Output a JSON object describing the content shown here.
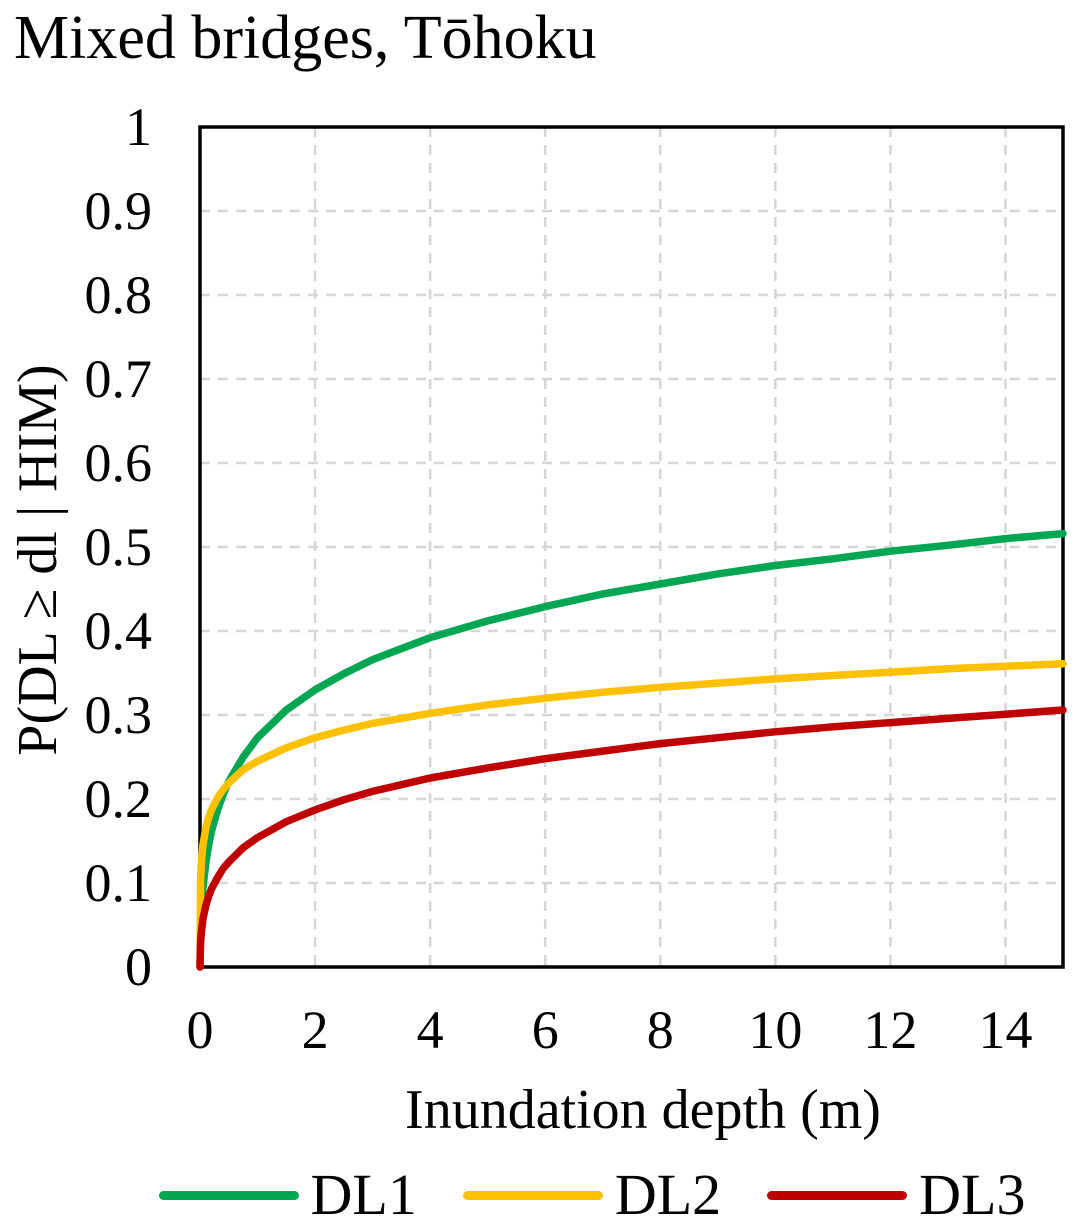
{
  "chart_data": {
    "type": "line",
    "title": "Mixed bridges, Tōhoku",
    "xlabel": "Inundation depth (m)",
    "ylabel": "P(DL ≥ dl | HIM)",
    "xlim": [
      0,
      15
    ],
    "ylim": [
      0,
      1
    ],
    "x_ticks": [
      0,
      2,
      4,
      6,
      8,
      10,
      12,
      14
    ],
    "y_ticks": [
      0,
      0.1,
      0.2,
      0.3,
      0.4,
      0.5,
      0.6,
      0.7,
      0.8,
      0.9,
      1
    ],
    "grid": "dashed",
    "legend_position": "bottom",
    "series": [
      {
        "name": "DL1",
        "color": "#00A651",
        "points": [
          [
            0,
            0
          ],
          [
            0.01,
            0.044
          ],
          [
            0.02,
            0.062
          ],
          [
            0.05,
            0.094
          ],
          [
            0.1,
            0.124
          ],
          [
            0.15,
            0.145
          ],
          [
            0.2,
            0.162
          ],
          [
            0.3,
            0.186
          ],
          [
            0.4,
            0.205
          ],
          [
            0.5,
            0.221
          ],
          [
            0.75,
            0.25
          ],
          [
            1,
            0.273
          ],
          [
            1.5,
            0.306
          ],
          [
            2,
            0.33
          ],
          [
            2.5,
            0.349
          ],
          [
            3,
            0.366
          ],
          [
            4,
            0.392
          ],
          [
            5,
            0.412
          ],
          [
            6,
            0.429
          ],
          [
            7,
            0.444
          ],
          [
            8,
            0.456
          ],
          [
            9,
            0.468
          ],
          [
            10,
            0.478
          ],
          [
            11,
            0.486
          ],
          [
            12,
            0.495
          ],
          [
            13,
            0.502
          ],
          [
            14,
            0.51
          ],
          [
            15,
            0.516
          ]
        ]
      },
      {
        "name": "DL2",
        "color": "#FFC000",
        "points": [
          [
            0,
            0
          ],
          [
            0.01,
            0.104
          ],
          [
            0.02,
            0.121
          ],
          [
            0.05,
            0.145
          ],
          [
            0.1,
            0.165
          ],
          [
            0.15,
            0.178
          ],
          [
            0.2,
            0.187
          ],
          [
            0.3,
            0.201
          ],
          [
            0.4,
            0.211
          ],
          [
            0.5,
            0.219
          ],
          [
            0.75,
            0.235
          ],
          [
            1,
            0.245
          ],
          [
            1.5,
            0.261
          ],
          [
            2,
            0.273
          ],
          [
            2.5,
            0.282
          ],
          [
            3,
            0.29
          ],
          [
            4,
            0.302
          ],
          [
            5,
            0.312
          ],
          [
            6,
            0.32
          ],
          [
            7,
            0.327
          ],
          [
            8,
            0.333
          ],
          [
            9,
            0.338
          ],
          [
            10,
            0.343
          ],
          [
            11,
            0.347
          ],
          [
            12,
            0.351
          ],
          [
            13,
            0.355
          ],
          [
            14,
            0.358
          ],
          [
            15,
            0.361
          ]
        ]
      },
      {
        "name": "DL3",
        "color": "#C00000",
        "points": [
          [
            0,
            0
          ],
          [
            0.01,
            0.03
          ],
          [
            0.02,
            0.039
          ],
          [
            0.05,
            0.057
          ],
          [
            0.1,
            0.073
          ],
          [
            0.15,
            0.084
          ],
          [
            0.2,
            0.093
          ],
          [
            0.3,
            0.106
          ],
          [
            0.4,
            0.117
          ],
          [
            0.5,
            0.125
          ],
          [
            0.75,
            0.142
          ],
          [
            1,
            0.154
          ],
          [
            1.5,
            0.173
          ],
          [
            2,
            0.187
          ],
          [
            2.5,
            0.199
          ],
          [
            3,
            0.209
          ],
          [
            4,
            0.225
          ],
          [
            5,
            0.237
          ],
          [
            6,
            0.248
          ],
          [
            7,
            0.257
          ],
          [
            8,
            0.266
          ],
          [
            9,
            0.273
          ],
          [
            10,
            0.28
          ],
          [
            11,
            0.286
          ],
          [
            12,
            0.291
          ],
          [
            13,
            0.296
          ],
          [
            14,
            0.301
          ],
          [
            15,
            0.306
          ]
        ]
      }
    ],
    "style": {
      "axis_color": "#000000",
      "grid_color": "#D6D6D6",
      "background": "#FFFFFF",
      "text_color": "#000000",
      "line_width": 7.5,
      "axis_width": 3.5
    }
  }
}
